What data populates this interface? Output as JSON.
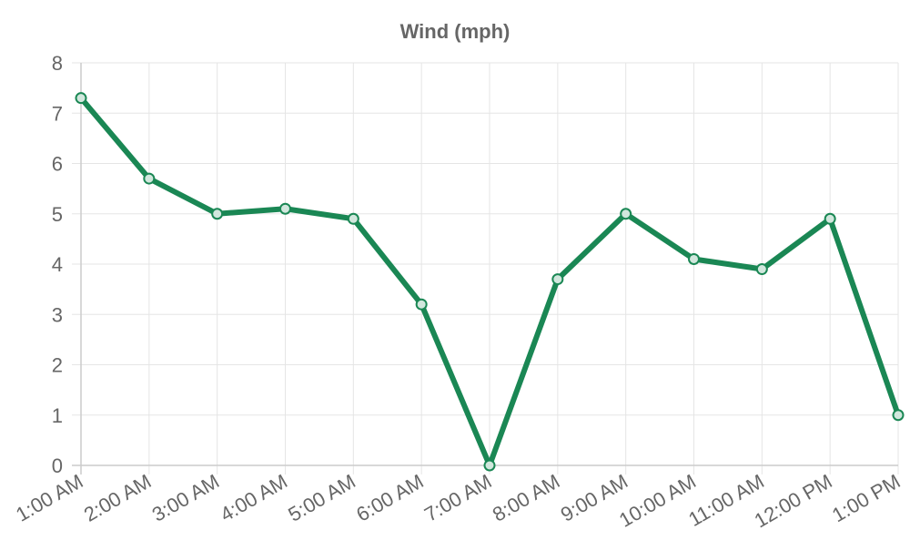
{
  "chart_data": {
    "type": "line",
    "title": "Wind (mph)",
    "xlabel": "",
    "ylabel": "",
    "categories": [
      "1:00 AM",
      "2:00 AM",
      "3:00 AM",
      "4:00 AM",
      "5:00 AM",
      "6:00 AM",
      "7:00 AM",
      "8:00 AM",
      "9:00 AM",
      "10:00 AM",
      "11:00 AM",
      "12:00 PM",
      "1:00 PM"
    ],
    "series": [
      {
        "values": [
          7.3,
          5.7,
          5.0,
          5.1,
          4.9,
          3.2,
          0,
          3.7,
          5.0,
          4.1,
          3.9,
          4.9,
          1.0
        ]
      }
    ],
    "ylim": [
      0,
      8
    ],
    "yticks": [
      0,
      1,
      2,
      3,
      4,
      5,
      6,
      7,
      8
    ],
    "grid": true,
    "legend": "none",
    "colors": {
      "line": "#1a8754",
      "point_fill": "#d1e7dd",
      "grid": "#e5e5e5",
      "axis": "#cccccc",
      "text": "#666666"
    }
  }
}
